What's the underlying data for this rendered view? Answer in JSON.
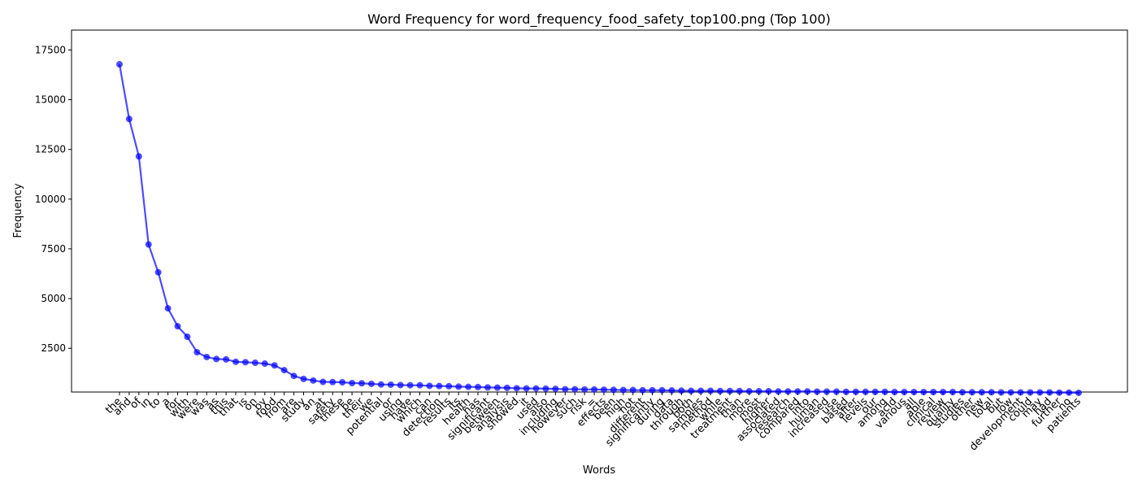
{
  "chart_data": {
    "type": "line",
    "title": "Word Frequency for word_frequency_food_safety_top100.png (Top 100)",
    "xlabel": "Words",
    "ylabel": "Frequency",
    "ylim": [
      300,
      18500
    ],
    "yticks": [
      2500,
      5000,
      7500,
      10000,
      12500,
      15000,
      17500
    ],
    "color": "#0000ff",
    "categories": [
      "the",
      "and",
      "of",
      "in",
      "to",
      "a",
      "for",
      "with",
      "were",
      "was",
      "as",
      "this",
      "that",
      "is",
      "on",
      "by",
      "food",
      "from",
      "are",
      "study",
      "an",
      "at",
      "safety",
      "these",
      "be",
      "their",
      "we",
      "potential",
      "or",
      "using",
      "have",
      "which",
      "can",
      "detection",
      "results",
      "its",
      "health",
      "has",
      "significant",
      "between",
      "analysis",
      "showed",
      "it",
      "used",
      "also",
      "including",
      "however",
      "such",
      "risk",
      "=",
      "effects",
      "been",
      "high",
      "not",
      "different",
      "significantly",
      "during",
      "data",
      "through",
      "both",
      "samples",
      "method",
      "while",
      "treatment",
      "than",
      "more",
      "most",
      "higher",
      "associated",
      "research",
      "compared",
      "into",
      "human",
      "increased",
      "use",
      "based",
      "after",
      "levels",
      "our",
      "among",
      "acid",
      "various",
      "all",
      "able",
      "clinical",
      "review",
      "quality",
      "studies",
      "other",
      "new",
      "total",
      "but",
      "low",
      "development",
      "could",
      "may",
      "had",
      "further",
      "no",
      "patients"
    ],
    "values": [
      16780,
      14030,
      12150,
      7720,
      6320,
      4510,
      3610,
      3080,
      2300,
      2060,
      1960,
      1940,
      1820,
      1800,
      1770,
      1730,
      1640,
      1400,
      1110,
      960,
      880,
      810,
      800,
      790,
      750,
      740,
      710,
      680,
      670,
      650,
      640,
      640,
      610,
      600,
      590,
      570,
      560,
      550,
      530,
      520,
      510,
      490,
      480,
      480,
      470,
      460,
      440,
      440,
      430,
      430,
      420,
      410,
      400,
      400,
      390,
      390,
      390,
      380,
      370,
      360,
      360,
      360,
      350,
      350,
      350,
      340,
      340,
      340,
      330,
      330,
      330,
      330,
      320,
      320,
      320,
      310,
      310,
      310,
      310,
      310,
      300,
      300,
      300,
      300,
      300,
      300,
      300,
      290,
      290,
      290,
      290,
      280,
      280,
      280,
      280,
      280,
      280,
      270,
      270,
      260
    ],
    "grid": false,
    "legend": "none"
  }
}
